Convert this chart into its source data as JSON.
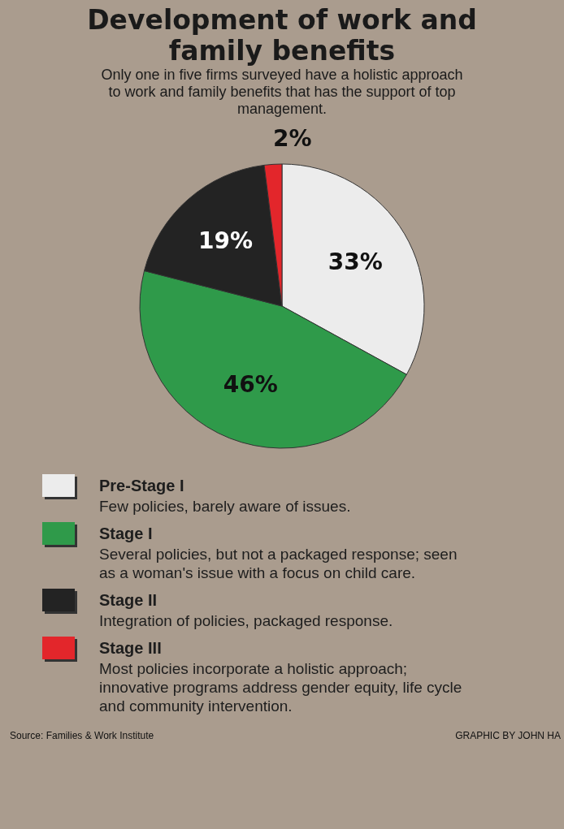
{
  "chart_data": {
    "type": "pie",
    "title": "Development of work and family benefits",
    "subtitle": "Only one in five firms surveyed have a holistic approach to work and family benefits that has the support of top management.",
    "categories": [
      "Pre-Stage I",
      "Stage I",
      "Stage II",
      "Stage III"
    ],
    "values": [
      33,
      46,
      19,
      2
    ],
    "colors": [
      "#ececec",
      "#2f9a4a",
      "#232323",
      "#e3262b"
    ],
    "value_labels": [
      "33%",
      "46%",
      "19%",
      "2%"
    ],
    "legend": "bottom",
    "annotations": [
      "Few policies, barely aware of issues.",
      "Several policies, but not a packaged response; seen as a woman's issue with a focus on child care.",
      "Integration of policies, packaged response.",
      "Most policies incorporate a holistic approach; innovative programs address gender equity, life cycle and community intervention.",
      "Source: Families & Work Institute",
      "GRAPHIC BY JOHN HA"
    ]
  }
}
